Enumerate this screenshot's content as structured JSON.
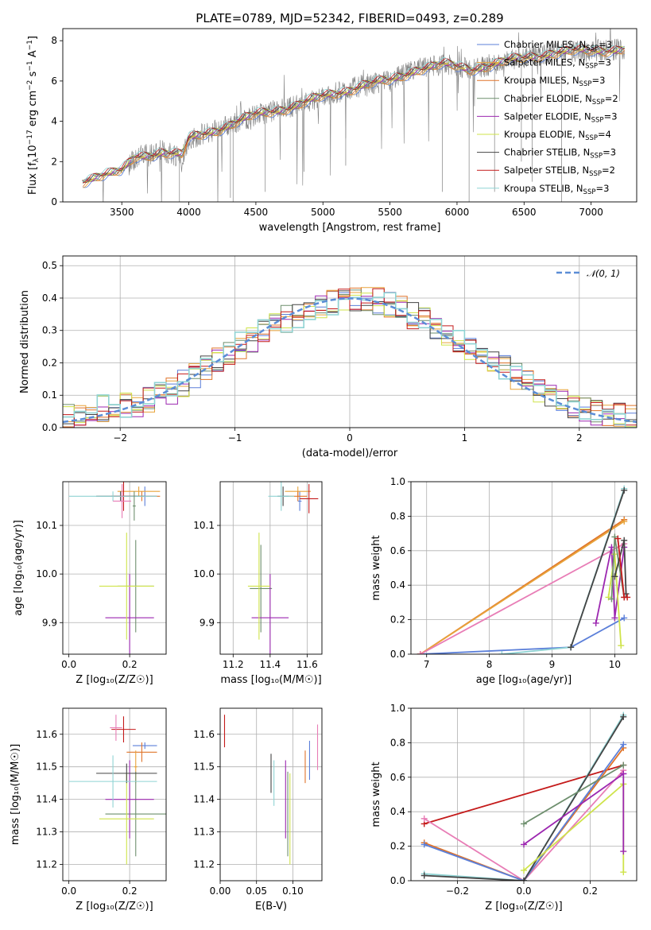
{
  "title": "PLATE=0789, MJD=52342, FIBERID=0493, z=0.289",
  "colors": {
    "chabrier_miles": "#5b7fd9",
    "salpeter_miles": "#e8a33a",
    "kroupa_miles": "#e0742a",
    "chabrier_elodie": "#6e8f6e",
    "salpeter_elodie": "#9c27b0",
    "kroupa_elodie": "#cfe34a",
    "chabrier_stelib": "#444444",
    "salpeter_stelib": "#c41a1a",
    "kroupa_stelib": "#8fd3d3",
    "pink": "#e87db6",
    "data": "#808080",
    "gauss": "#5b8dd6",
    "grid": "#b0b0b0"
  },
  "chart_data": [
    {
      "id": "spectrum",
      "type": "line",
      "xlabel": "wavelength [Angstrom, rest frame]",
      "ylabel_parts": [
        "Flux [f",
        "λ",
        "10",
        "−17",
        " erg cm",
        "−2",
        " s",
        "−1",
        " A",
        "−1",
        "]"
      ],
      "xlim": [
        3060,
        7340
      ],
      "ylim": [
        0,
        8.6
      ],
      "xticks": [
        3500,
        4000,
        4500,
        5000,
        5500,
        6000,
        6500,
        7000
      ],
      "yticks": [
        0,
        2,
        4,
        6,
        8
      ],
      "data_x_range": [
        3205,
        7250
      ],
      "continuum": [
        [
          3205,
          1.0
        ],
        [
          3300,
          1.3
        ],
        [
          3500,
          1.5
        ],
        [
          3600,
          2.2
        ],
        [
          3800,
          2.5
        ],
        [
          3950,
          2.3
        ],
        [
          4000,
          3.1
        ],
        [
          4250,
          3.7
        ],
        [
          4500,
          4.3
        ],
        [
          4800,
          4.8
        ],
        [
          5000,
          5.2
        ],
        [
          5300,
          5.8
        ],
        [
          5500,
          6.0
        ],
        [
          5700,
          6.6
        ],
        [
          5900,
          6.8
        ],
        [
          6100,
          6.6
        ],
        [
          6400,
          7.0
        ],
        [
          6700,
          7.4
        ],
        [
          7000,
          7.5
        ],
        [
          7250,
          7.6
        ]
      ],
      "legend": [
        {
          "prefix": "Chabrier MILES, N",
          "sub": "SSP",
          "suffix": "=3"
        },
        {
          "prefix": "Salpeter MILES, N",
          "sub": "SSP",
          "suffix": "=3"
        },
        {
          "prefix": "Kroupa MILES, N",
          "sub": "SSP",
          "suffix": "=3"
        },
        {
          "prefix": "Chabrier ELODIE, N",
          "sub": "SSP",
          "suffix": "=2"
        },
        {
          "prefix": "Salpeter ELODIE, N",
          "sub": "SSP",
          "suffix": "=3"
        },
        {
          "prefix": "Kroupa ELODIE, N",
          "sub": "SSP",
          "suffix": "=4"
        },
        {
          "prefix": "Chabrier STELIB, N",
          "sub": "SSP",
          "suffix": "=3"
        },
        {
          "prefix": "Salpeter STELIB, N",
          "sub": "SSP",
          "suffix": "=2"
        },
        {
          "prefix": "Kroupa STELIB, N",
          "sub": "SSP",
          "suffix": "=3"
        }
      ]
    },
    {
      "id": "residuals",
      "type": "line",
      "xlabel": "(data-model)/error",
      "ylabel": "Normed distribution",
      "xlim": [
        -2.5,
        2.5
      ],
      "ylim": [
        0,
        0.53
      ],
      "xticks": [
        -2,
        -1,
        0,
        1,
        2
      ],
      "yticks": [
        0.0,
        0.1,
        0.2,
        0.3,
        0.4,
        0.5
      ],
      "legend": "𝒩(0, 1)",
      "bins": [
        -2.5,
        -2.4,
        -2.3,
        -2.2,
        -2.1,
        -2.0,
        -1.9,
        -1.8,
        -1.7,
        -1.6,
        -1.5,
        -1.4,
        -1.3,
        -1.2,
        -1.1,
        -1.0,
        -0.9,
        -0.8,
        -0.7,
        -0.6,
        -0.5,
        -0.4,
        -0.3,
        -0.2,
        -0.1,
        0.0,
        0.1,
        0.2,
        0.3,
        0.4,
        0.5,
        0.6,
        0.7,
        0.8,
        0.9,
        1.0,
        1.1,
        1.2,
        1.3,
        1.4,
        1.5,
        1.6,
        1.7,
        1.8,
        1.9,
        2.0,
        2.1,
        2.2,
        2.3,
        2.4,
        2.5
      ],
      "hist_base": [
        0.03,
        0.035,
        0.045,
        0.06,
        0.065,
        0.07,
        0.075,
        0.085,
        0.105,
        0.115,
        0.135,
        0.16,
        0.185,
        0.21,
        0.23,
        0.255,
        0.275,
        0.3,
        0.32,
        0.335,
        0.345,
        0.365,
        0.38,
        0.39,
        0.4,
        0.4,
        0.4,
        0.39,
        0.38,
        0.365,
        0.345,
        0.33,
        0.31,
        0.29,
        0.27,
        0.25,
        0.225,
        0.2,
        0.18,
        0.16,
        0.135,
        0.115,
        0.1,
        0.085,
        0.07,
        0.06,
        0.05,
        0.045,
        0.035,
        0.03
      ]
    },
    {
      "id": "age_vs_Z",
      "type": "scatter",
      "xlabel": "Z [log₁₀(Z/Z☉)]",
      "ylabel": "age  [log₁₀(age/yr)]",
      "xlim": [
        -0.02,
        0.32
      ],
      "ylim": [
        9.835,
        10.19
      ],
      "xticks": [
        0.0,
        0.2
      ],
      "yticks": [
        9.9,
        10.0,
        10.1
      ],
      "points": [
        {
          "c": "chabrier_miles",
          "x": 0.25,
          "xe": 0.04,
          "y": 10.16,
          "ye": 0.02
        },
        {
          "c": "salpeter_miles",
          "x": 0.23,
          "xe": 0.07,
          "y": 10.17,
          "ye": 0.01
        },
        {
          "c": "kroupa_miles",
          "x": 0.24,
          "xe": 0.06,
          "y": 10.16,
          "ye": 0.01
        },
        {
          "c": "chabrier_elodie",
          "x": 0.22,
          "xe": 0.06,
          "y": 9.975,
          "ye": 0.095
        },
        {
          "c": "salpeter_elodie",
          "x": 0.2,
          "xe": 0.08,
          "y": 9.91,
          "ye": 0.09
        },
        {
          "c": "kroupa_elodie",
          "x": 0.19,
          "xe": 0.09,
          "y": 9.975,
          "ye": 0.11
        },
        {
          "c": "chabrier_stelib",
          "x": 0.17,
          "xe": 0.08,
          "y": 10.16,
          "ye": 0.01
        },
        {
          "c": "salpeter_stelib",
          "x": 0.18,
          "xe": 0.04,
          "y": 10.16,
          "ye": 0.03
        },
        {
          "c": "kroupa_stelib",
          "x": 0.145,
          "xe": 0.145,
          "y": 10.16,
          "ye": 0.01
        },
        {
          "c": "pink",
          "x": 0.175,
          "xe": 0.03,
          "y": 10.15,
          "ye": 0.035
        },
        {
          "c": "chabrier_elodie",
          "x": 0.215,
          "xe": 0.005,
          "y": 10.14,
          "ye": 0.03
        }
      ]
    },
    {
      "id": "age_vs_mass",
      "type": "scatter",
      "xlabel": "mass [log₁₀(M/M☉)]",
      "ylabel": "",
      "xlim": [
        11.13,
        11.68
      ],
      "ylim": [
        9.835,
        10.19
      ],
      "xticks": [
        11.2,
        11.4,
        11.6
      ],
      "yticks": [
        9.9,
        10.0,
        10.1
      ],
      "points": [
        {
          "c": "chabrier_miles",
          "x": 11.56,
          "xe": 0.01,
          "y": 10.15,
          "ye": 0.02
        },
        {
          "c": "salpeter_miles",
          "x": 11.55,
          "xe": 0.07,
          "y": 10.17,
          "ye": 0.01
        },
        {
          "c": "kroupa_miles",
          "x": 11.55,
          "xe": 0.05,
          "y": 10.16,
          "ye": 0.01
        },
        {
          "c": "chabrier_elodie",
          "x": 11.35,
          "xe": 0.06,
          "y": 9.97,
          "ye": 0.09
        },
        {
          "c": "salpeter_elodie",
          "x": 11.4,
          "xe": 0.1,
          "y": 9.91,
          "ye": 0.09
        },
        {
          "c": "kroupa_elodie",
          "x": 11.34,
          "xe": 0.06,
          "y": 9.975,
          "ye": 0.11
        },
        {
          "c": "chabrier_stelib",
          "x": 11.47,
          "xe": 0.03,
          "y": 10.16,
          "ye": 0.02
        },
        {
          "c": "salpeter_stelib",
          "x": 11.61,
          "xe": 0.05,
          "y": 10.155,
          "ye": 0.03
        },
        {
          "c": "kroupa_stelib",
          "x": 11.46,
          "xe": 0.07,
          "y": 10.16,
          "ye": 0.03
        }
      ]
    },
    {
      "id": "mw_vs_age",
      "type": "line",
      "xlabel": "age  [log₁₀(age/yr)]",
      "ylabel": "mass weight",
      "xlim": [
        6.75,
        10.35
      ],
      "ylim": [
        0,
        1.0
      ],
      "xticks": [
        7,
        8,
        9,
        10
      ],
      "yticks": [
        0.0,
        0.2,
        0.4,
        0.6,
        0.8,
        1.0
      ],
      "series": [
        {
          "c": "chabrier_miles",
          "x": [
            6.9,
            9.3,
            10.15
          ],
          "y": [
            0.0,
            0.04,
            0.21
          ]
        },
        {
          "c": "kroupa_miles",
          "x": [
            6.9,
            10.15
          ],
          "y": [
            0.0,
            0.78
          ]
        },
        {
          "c": "salpeter_miles",
          "x": [
            6.9,
            10.15
          ],
          "y": [
            0.0,
            0.77
          ]
        },
        {
          "c": "pink",
          "x": [
            6.9,
            10.15
          ],
          "y": [
            0.0,
            0.64
          ]
        },
        {
          "c": "salpeter_elodie",
          "x": [
            9.7,
            9.95,
            10.0,
            10.15
          ],
          "y": [
            0.18,
            0.62,
            0.21,
            0.62
          ]
        },
        {
          "c": "kroupa_elodie",
          "x": [
            9.9,
            10.0,
            10.1
          ],
          "y": [
            0.33,
            0.58,
            0.05
          ]
        },
        {
          "c": "chabrier_elodie",
          "x": [
            9.95,
            10.0,
            10.15
          ],
          "y": [
            0.32,
            0.68,
            0.33
          ]
        },
        {
          "c": "chabrier_stelib",
          "x": [
            10.0,
            10.15,
            10.18
          ],
          "y": [
            0.45,
            0.66,
            0.35
          ]
        },
        {
          "c": "salpeter_stelib",
          "x": [
            10.05,
            10.15,
            10.2
          ],
          "y": [
            0.67,
            0.33,
            0.33
          ]
        },
        {
          "c": "kroupa_stelib",
          "x": [
            8.2,
            9.3,
            10.15
          ],
          "y": [
            0.0,
            0.04,
            0.96
          ]
        },
        {
          "c": "chabrier_stelib",
          "x": [
            9.3,
            10.15
          ],
          "y": [
            0.04,
            0.95
          ]
        }
      ]
    },
    {
      "id": "mass_vs_Z",
      "type": "scatter",
      "xlabel": "Z [log₁₀(Z/Z☉)]",
      "ylabel": "mass [log₁₀(M/M☉)]",
      "xlim": [
        -0.02,
        0.32
      ],
      "ylim": [
        11.15,
        11.68
      ],
      "xticks": [
        0.0,
        0.2
      ],
      "yticks": [
        11.2,
        11.3,
        11.4,
        11.5,
        11.6
      ],
      "points": [
        {
          "c": "chabrier_miles",
          "x": 0.25,
          "xe": 0.04,
          "y": 11.565,
          "ye": 0.01
        },
        {
          "c": "kroupa_miles",
          "x": 0.24,
          "xe": 0.05,
          "y": 11.545,
          "ye": 0.03
        },
        {
          "c": "salpeter_miles",
          "x": 0.22,
          "xe": 0.005,
          "y": 11.5,
          "ye": 0.05
        },
        {
          "c": "chabrier_elodie",
          "x": 0.22,
          "xe": 0.1,
          "y": 11.355,
          "ye": 0.13
        },
        {
          "c": "salpeter_elodie",
          "x": 0.2,
          "xe": 0.08,
          "y": 11.4,
          "ye": 0.12
        },
        {
          "c": "kroupa_elodie",
          "x": 0.19,
          "xe": 0.09,
          "y": 11.34,
          "ye": 0.14
        },
        {
          "c": "chabrier_stelib",
          "x": 0.19,
          "xe": 0.1,
          "y": 11.48,
          "ye": 0.03
        },
        {
          "c": "salpeter_stelib",
          "x": 0.18,
          "xe": 0.04,
          "y": 11.615,
          "ye": 0.04
        },
        {
          "c": "kroupa_stelib",
          "x": 0.145,
          "xe": 0.145,
          "y": 11.455,
          "ye": 0.08
        },
        {
          "c": "pink",
          "x": 0.155,
          "xe": 0.02,
          "y": 11.62,
          "ye": 0.04
        }
      ]
    },
    {
      "id": "mass_vs_ebv",
      "type": "scatter",
      "xlabel": "E(B-V)",
      "ylabel": "",
      "xlim": [
        0.0,
        0.14
      ],
      "ylim": [
        11.15,
        11.68
      ],
      "xticks": [
        0.0,
        0.05,
        0.1
      ],
      "tick_labels": [
        "0.00",
        "0.05",
        "0.10"
      ],
      "yticks": [
        11.2,
        11.3,
        11.4,
        11.5,
        11.6
      ],
      "points": [
        {
          "c": "salpeter_stelib",
          "x": 0.006,
          "y": 11.61,
          "ye": 0.05
        },
        {
          "c": "chabrier_stelib",
          "x": 0.07,
          "y": 11.48,
          "ye": 0.06
        },
        {
          "c": "kroupa_stelib",
          "x": 0.074,
          "y": 11.45,
          "ye": 0.07
        },
        {
          "c": "salpeter_elodie",
          "x": 0.09,
          "y": 11.4,
          "ye": 0.12
        },
        {
          "c": "chabrier_elodie",
          "x": 0.093,
          "y": 11.355,
          "ye": 0.13
        },
        {
          "c": "kroupa_elodie",
          "x": 0.096,
          "y": 11.34,
          "ye": 0.14
        },
        {
          "c": "kroupa_miles",
          "x": 0.117,
          "y": 11.5,
          "ye": 0.05
        },
        {
          "c": "chabrier_miles",
          "x": 0.123,
          "y": 11.52,
          "ye": 0.06
        },
        {
          "c": "pink",
          "x": 0.134,
          "y": 11.56,
          "ye": 0.07
        }
      ]
    },
    {
      "id": "mw_vs_Z",
      "type": "line",
      "xlabel": "Z [log₁₀(Z/Z☉)]",
      "ylabel": "mass weight",
      "xlim": [
        -0.34,
        0.34
      ],
      "ylim": [
        0,
        1.0
      ],
      "xticks": [
        -0.2,
        0.0,
        0.2
      ],
      "tick_labels": [
        "−0.2",
        "0.0",
        "0.2"
      ],
      "yticks": [
        0.0,
        0.2,
        0.4,
        0.6,
        0.8,
        1.0
      ],
      "series": [
        {
          "c": "salpeter_stelib",
          "x": [
            -0.3,
            0.3
          ],
          "y": [
            0.33,
            0.67
          ]
        },
        {
          "c": "pink",
          "x": [
            -0.3,
            0.0,
            0.3
          ],
          "y": [
            0.36,
            0.0,
            0.64
          ]
        },
        {
          "c": "kroupa_miles",
          "x": [
            -0.3,
            0.0,
            0.3
          ],
          "y": [
            0.22,
            0.0,
            0.77
          ]
        },
        {
          "c": "chabrier_miles",
          "x": [
            -0.3,
            0.0,
            0.3
          ],
          "y": [
            0.21,
            0.0,
            0.79
          ]
        },
        {
          "c": "kroupa_stelib",
          "x": [
            -0.3,
            0.0,
            0.3
          ],
          "y": [
            0.04,
            0.0,
            0.96
          ]
        },
        {
          "c": "chabrier_stelib",
          "x": [
            -0.3,
            0.0,
            0.3
          ],
          "y": [
            0.03,
            0.0,
            0.95
          ]
        },
        {
          "c": "chabrier_elodie",
          "x": [
            0.0,
            0.3
          ],
          "y": [
            0.33,
            0.67
          ]
        },
        {
          "c": "salpeter_elodie",
          "x": [
            0.0,
            0.3
          ],
          "y": [
            0.21,
            0.62
          ]
        },
        {
          "c": "kroupa_elodie",
          "x": [
            0.0,
            0.3
          ],
          "y": [
            0.06,
            0.56
          ]
        },
        {
          "c": "kroupa_elodie",
          "x": [
            0.3,
            0.3
          ],
          "y": [
            0.56,
            0.05
          ]
        },
        {
          "c": "salpeter_elodie",
          "x": [
            0.3,
            0.3
          ],
          "y": [
            0.62,
            0.17
          ]
        }
      ]
    }
  ]
}
